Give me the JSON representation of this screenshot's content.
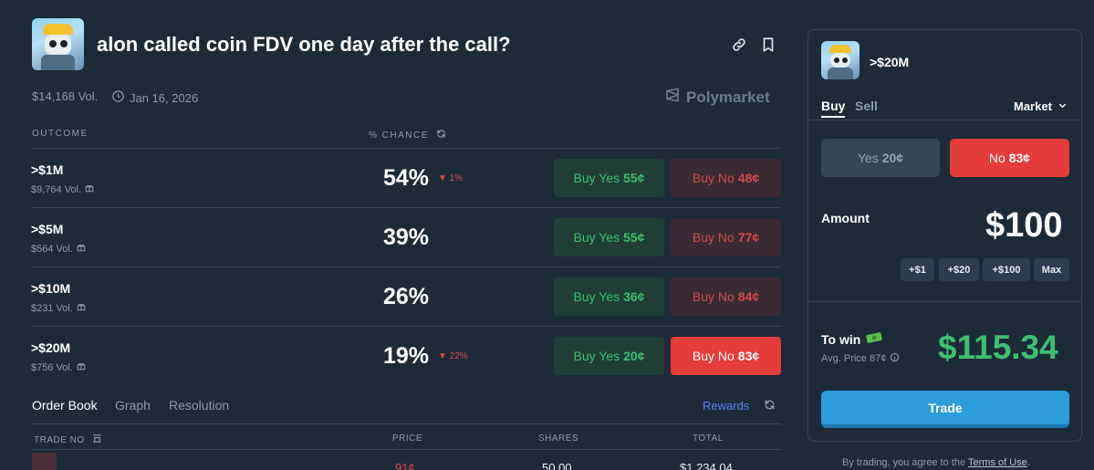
{
  "header": {
    "title": "alon called coin FDV one day after the call?",
    "volume": "$14,168 Vol.",
    "date": "Jan 16, 2026",
    "brand": "Polymarket"
  },
  "table": {
    "col_outcome": "OUTCOME",
    "col_chance": "% CHANCE",
    "rows": [
      {
        "label": ">$1M",
        "vol": "$9,764 Vol.",
        "pct": "54%",
        "delta": "▼ 1%",
        "yes_text": "Buy Yes",
        "yes_price": "55¢",
        "no_text": "Buy No",
        "no_price": "48¢"
      },
      {
        "label": ">$5M",
        "vol": "$564 Vol.",
        "pct": "39%",
        "delta": "",
        "yes_text": "Buy Yes",
        "yes_price": "55¢",
        "no_text": "Buy No",
        "no_price": "77¢"
      },
      {
        "label": ">$10M",
        "vol": "$231 Vol.",
        "pct": "26%",
        "delta": "",
        "yes_text": "Buy Yes",
        "yes_price": "36¢",
        "no_text": "Buy No",
        "no_price": "84¢"
      },
      {
        "label": ">$20M",
        "vol": "$756 Vol.",
        "pct": "19%",
        "delta": "▼ 22%",
        "yes_text": "Buy Yes",
        "yes_price": "20¢",
        "no_text": "Buy No",
        "no_price": "83¢"
      }
    ]
  },
  "tabs": {
    "order_book": "Order Book",
    "graph": "Graph",
    "resolution": "Resolution",
    "rewards": "Rewards"
  },
  "order_book": {
    "col_trade": "TRADE NO",
    "col_price": "PRICE",
    "col_shares": "SHARES",
    "col_total": "TOTAL",
    "first_row": {
      "price": "91¢",
      "shares": "50.00",
      "total": "$1,234.04"
    }
  },
  "panel": {
    "outcome": ">$20M",
    "buy": "Buy",
    "sell": "Sell",
    "order_type": "Market",
    "yes_label": "Yes",
    "yes_price": "20¢",
    "no_label": "No",
    "no_price": "83¢",
    "amount_label": "Amount",
    "amount_value": "$100",
    "quick": [
      "+$1",
      "+$20",
      "+$100",
      "Max"
    ],
    "to_win_label": "To win",
    "avg_price": "Avg. Price 87¢",
    "to_win_value": "$115.34",
    "trade_label": "Trade",
    "terms_prefix": "By trading, you agree to the",
    "terms_link": "Terms of Use",
    "terms_suffix": "."
  },
  "colors": {
    "background": "#1d2b39",
    "yes_green": "#3cbf6e",
    "no_red": "#e43b3b",
    "trade_blue": "#2d9cdb"
  }
}
